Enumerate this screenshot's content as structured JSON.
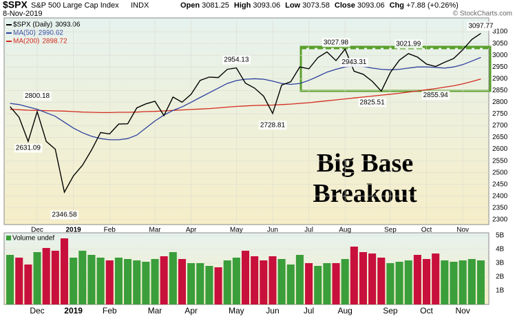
{
  "chart_data": {
    "type": "line",
    "symbol": "$SPX",
    "name": "S&P 500 Large Cap Index",
    "exchange": "INDX",
    "date": "8-Nov-2019",
    "quote": [
      {
        "label": "Open",
        "value": 3081.25
      },
      {
        "label": "High",
        "value": 3093.06
      },
      {
        "label": "Low",
        "value": 3073.58
      },
      {
        "label": "Close",
        "value": 3093.06
      },
      {
        "label": "Chg",
        "value": "+7.88 (+0.26%)"
      }
    ],
    "credit": "© StockCharts.com",
    "title": "Big Base Breakout",
    "categories": [
      null,
      null,
      null,
      "Dec",
      null,
      null,
      null,
      "2019",
      null,
      null,
      null,
      "Feb",
      null,
      null,
      null,
      null,
      "Mar",
      null,
      null,
      null,
      "Apr",
      null,
      null,
      null,
      null,
      "May",
      null,
      null,
      null,
      "Jun",
      null,
      null,
      null,
      "Jul",
      null,
      null,
      null,
      "Aug",
      null,
      null,
      null,
      null,
      "Sep",
      null,
      null,
      null,
      "Oct",
      null,
      null,
      null,
      "Nov",
      null,
      null
    ],
    "series": [
      {
        "name": "$SPX (Daily)",
        "color": "#000000",
        "values": [
          2781,
          2736,
          2633,
          2760,
          2633,
          2600,
          2417,
          2486,
          2532,
          2596,
          2671,
          2665,
          2707,
          2708,
          2776,
          2793,
          2804,
          2743,
          2822,
          2800,
          2834,
          2893,
          2907,
          2905,
          2940,
          2946,
          2881,
          2860,
          2826,
          2752,
          2873,
          2887,
          2950,
          2942,
          2990,
          3014,
          2977,
          3026,
          2932,
          2919,
          2889,
          2847,
          2926,
          2979,
          3007,
          2992,
          2962,
          2952,
          2970,
          2986,
          3023,
          3067,
          3093.06
        ]
      },
      {
        "name": "MA(50)",
        "color": "#2b3f9e",
        "values": [
          2795,
          2790,
          2780,
          2770,
          2755,
          2740,
          2715,
          2690,
          2670,
          2655,
          2645,
          2640,
          2640,
          2645,
          2660,
          2690,
          2720,
          2745,
          2765,
          2780,
          2800,
          2820,
          2840,
          2860,
          2880,
          2892,
          2898,
          2900,
          2898,
          2890,
          2880,
          2876,
          2880,
          2893,
          2910,
          2928,
          2940,
          2950,
          2955,
          2952,
          2945,
          2940,
          2938,
          2940,
          2945,
          2950,
          2950,
          2948,
          2945,
          2950,
          2960,
          2975,
          2990.62
        ]
      },
      {
        "name": "MA(200)",
        "color": "#d42a1e",
        "values": [
          2770,
          2768,
          2766,
          2765,
          2764,
          2763,
          2762,
          2760,
          2758,
          2757,
          2756,
          2756,
          2757,
          2757,
          2758,
          2760,
          2761,
          2763,
          2765,
          2767,
          2769,
          2771,
          2773,
          2776,
          2779,
          2782,
          2784,
          2786,
          2787,
          2788,
          2790,
          2792,
          2795,
          2798,
          2802,
          2806,
          2810,
          2814,
          2818,
          2822,
          2826,
          2830,
          2834,
          2838,
          2843,
          2848,
          2853,
          2858,
          2864,
          2870,
          2878,
          2888,
          2898.72
        ]
      }
    ],
    "annotations": [
      2800.18,
      2631.09,
      2346.58,
      2954.13,
      2728.81,
      3027.98,
      2943.31,
      2825.51,
      3021.99,
      2855.94,
      3097.77
    ],
    "ylim": [
      2282,
      3153
    ],
    "yticks": [
      2300,
      2350,
      2400,
      2450,
      2500,
      2550,
      2600,
      2650,
      2700,
      2750,
      2800,
      2850,
      2900,
      2950,
      3000,
      3050,
      3100
    ],
    "volume": {
      "name": "Volume undef",
      "up_color": "#3a9e3a",
      "down_color": "#c8103c",
      "values": [
        3.6,
        3.4,
        2.9,
        3.8,
        4.1,
        3.9,
        4.8,
        3.4,
        3.9,
        3.6,
        3.4,
        3.2,
        3.4,
        3.3,
        3.2,
        3.1,
        3.3,
        3.5,
        3.8,
        3.3,
        3.0,
        3.0,
        2.8,
        2.7,
        3.2,
        3.4,
        3.9,
        3.5,
        3.2,
        3.5,
        3.3,
        2.9,
        3.6,
        3.0,
        2.8,
        3.0,
        3.0,
        3.3,
        4.2,
        3.8,
        3.7,
        3.4,
        3.0,
        3.1,
        3.2,
        3.6,
        3.3,
        3.7,
        3.2,
        3.1,
        3.2,
        3.3,
        3.2
      ],
      "ylim": [
        0,
        5.2
      ],
      "yticks": [
        {
          "value": 1,
          "label": "1B"
        },
        {
          "value": 2,
          "label": "2B"
        },
        {
          "value": 3,
          "label": "3B"
        },
        {
          "value": 4,
          "label": "4B"
        },
        {
          "value": 5,
          "label": "5B"
        }
      ]
    }
  }
}
